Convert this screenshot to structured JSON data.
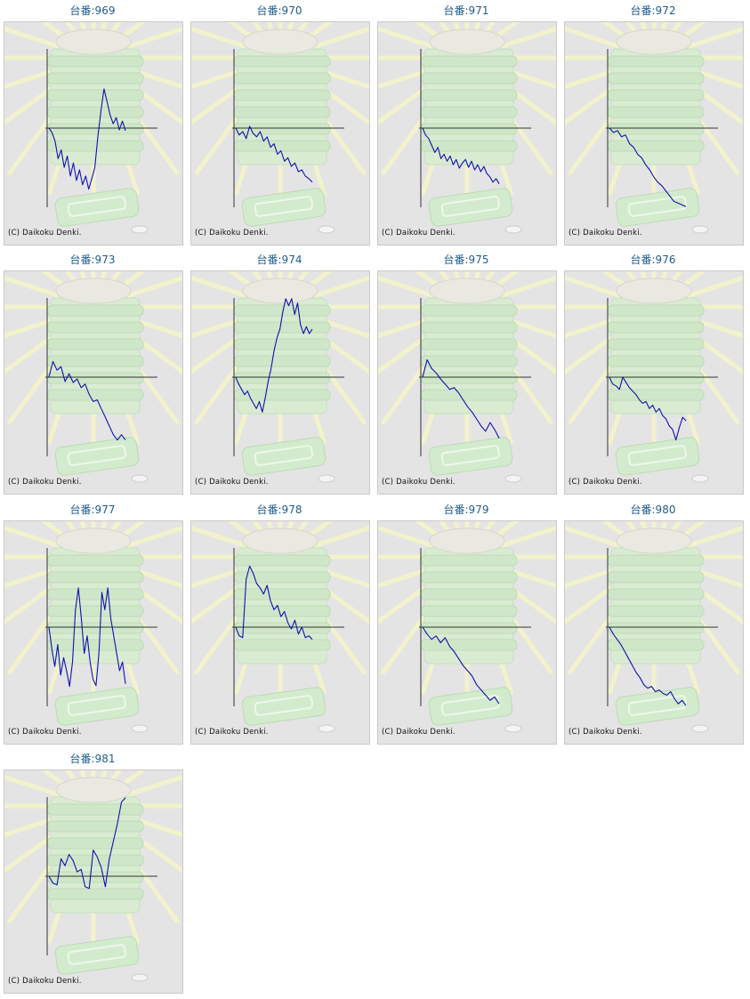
{
  "copyright": "(C) Daikoku Denki.",
  "colors": {
    "title": "#1f5c8c",
    "line": "#1010b0",
    "axis": "#333333",
    "panel_bg": "#e4e4e4"
  },
  "chart_data": [
    {
      "type": "line",
      "title": "台番:969",
      "y": [
        0,
        -5,
        -15,
        -35,
        -25,
        -45,
        -32,
        -55,
        -40,
        -60,
        -48,
        -65,
        -55,
        -70,
        -58,
        -45,
        -10,
        20,
        45,
        30,
        15,
        5,
        12,
        -2,
        8,
        -3
      ]
    },
    {
      "type": "line",
      "title": "台番:970",
      "y": [
        0,
        -8,
        -4,
        -12,
        2,
        -6,
        -10,
        -4,
        -15,
        -10,
        -22,
        -18,
        -30,
        -26,
        -38,
        -34,
        -44,
        -40,
        -50,
        -48,
        -55,
        -58,
        -62
      ]
    },
    {
      "type": "line",
      "title": "台番:971",
      "y": [
        0,
        -8,
        -12,
        -20,
        -28,
        -22,
        -35,
        -30,
        -38,
        -32,
        -42,
        -36,
        -46,
        -40,
        -36,
        -45,
        -38,
        -48,
        -42,
        -50,
        -44,
        -52,
        -56,
        -62,
        -58,
        -64
      ]
    },
    {
      "type": "line",
      "title": "台番:972",
      "y": [
        0,
        -5,
        -3,
        -10,
        -8,
        -18,
        -22,
        -30,
        -34,
        -42,
        -48,
        -56,
        -62,
        -66,
        -72,
        -78,
        -84,
        -86,
        -88,
        -90
      ]
    },
    {
      "type": "line",
      "title": "台番:973",
      "y": [
        0,
        18,
        8,
        12,
        -5,
        4,
        -6,
        -2,
        -12,
        -8,
        -20,
        -28,
        -26,
        -36,
        -46,
        -56,
        -66,
        -72,
        -66,
        -72
      ]
    },
    {
      "type": "line",
      "title": "台番:974",
      "y": [
        0,
        -8,
        -14,
        -20,
        -16,
        -24,
        -30,
        -36,
        -28,
        -40,
        -24,
        -5,
        10,
        30,
        45,
        55,
        75,
        90,
        82,
        90,
        72,
        85,
        60,
        50,
        58,
        50,
        55
      ]
    },
    {
      "type": "line",
      "title": "台番:975",
      "y": [
        0,
        20,
        10,
        5,
        -2,
        -8,
        -14,
        -12,
        -18,
        -26,
        -34,
        -40,
        -48,
        -56,
        -62,
        -52,
        -60,
        -70
      ]
    },
    {
      "type": "line",
      "title": "台番:976",
      "y": [
        0,
        -8,
        -10,
        -14,
        0,
        -6,
        -12,
        -16,
        -20,
        -26,
        -30,
        -28,
        -36,
        -32,
        -40,
        -36,
        -44,
        -48,
        -56,
        -60,
        -72,
        -58,
        -46,
        -50
      ]
    },
    {
      "type": "line",
      "title": "台番:977",
      "y": [
        0,
        -25,
        -45,
        -20,
        -55,
        -35,
        -50,
        -68,
        -40,
        20,
        45,
        10,
        -30,
        -10,
        -40,
        -60,
        -67,
        -30,
        40,
        20,
        45,
        10,
        -10,
        -30,
        -50,
        -40,
        -65
      ]
    },
    {
      "type": "line",
      "title": "台番:978",
      "y": [
        0,
        -10,
        -12,
        55,
        70,
        62,
        50,
        45,
        38,
        48,
        30,
        20,
        25,
        12,
        18,
        5,
        -2,
        8,
        -8,
        0,
        -12,
        -10,
        -14
      ]
    },
    {
      "type": "line",
      "title": "台番:979",
      "y": [
        0,
        -8,
        -14,
        -10,
        -18,
        -12,
        -22,
        -28,
        -36,
        -44,
        -50,
        -56,
        -66,
        -72,
        -78,
        -84,
        -80,
        -88
      ]
    },
    {
      "type": "line",
      "title": "台番:980",
      "y": [
        0,
        -8,
        -14,
        -20,
        -28,
        -36,
        -44,
        -52,
        -58,
        -66,
        -70,
        -68,
        -74,
        -72,
        -76,
        -78,
        -74,
        -82,
        -88,
        -84,
        -90
      ]
    },
    {
      "type": "line",
      "title": "台番:981",
      "y": [
        0,
        -8,
        -10,
        20,
        12,
        25,
        18,
        5,
        8,
        -12,
        -14,
        30,
        22,
        10,
        -12,
        20,
        40,
        60,
        85,
        90
      ]
    }
  ]
}
